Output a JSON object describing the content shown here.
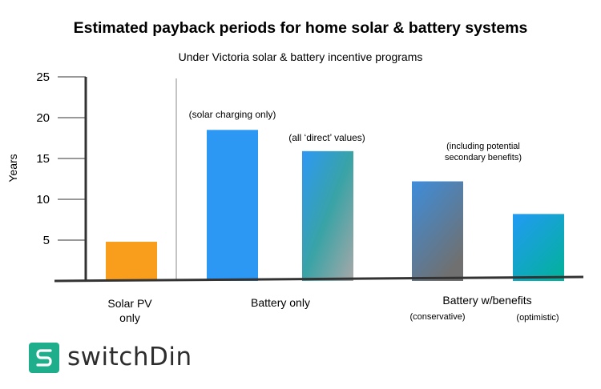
{
  "chart_data": {
    "type": "bar",
    "title": "Estimated payback periods for home solar & battery systems",
    "subtitle": "Under Victoria solar & battery incentive programs",
    "ylabel": "Years",
    "ylim": [
      0,
      25
    ],
    "yticks": [
      5,
      10,
      15,
      20,
      25
    ],
    "grid": false,
    "bars": [
      {
        "value": 4.8,
        "note": "",
        "color": "#f99d1c"
      },
      {
        "value": 18.5,
        "note": "(solar charging only)",
        "color": "#2d98f4"
      },
      {
        "value": 15.9,
        "note": "(all ‘direct’ values)",
        "color": "#2d98f4",
        "gradient_to": "#a8a8a8"
      },
      {
        "value": 12.2,
        "note": "(including potential secondary benefits)",
        "color": "#3d8ddb",
        "gradient_to": "#707070"
      },
      {
        "value": 8.2,
        "note": "",
        "color": "#229af4",
        "gradient_to": "#04b0a0"
      }
    ],
    "groups": [
      {
        "label": "Solar PV only"
      },
      {
        "label": "Battery only"
      },
      {
        "label": "Battery w/benefits",
        "sublabels": [
          "(conservative)",
          "(optimistic)"
        ]
      }
    ]
  },
  "logo": {
    "text": "switchDin",
    "color": "#1fae8b",
    "icon": "s-icon"
  }
}
